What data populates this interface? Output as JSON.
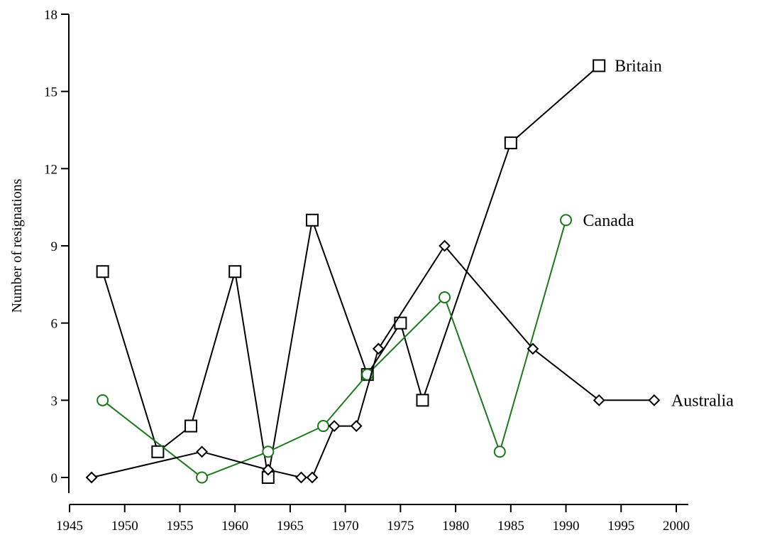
{
  "chart_data": {
    "type": "line",
    "title": "",
    "xlabel": "",
    "ylabel": "Number of resignations",
    "xlim": [
      1945,
      2000
    ],
    "ylim": [
      0,
      18
    ],
    "x_ticks": [
      1945,
      1950,
      1955,
      1960,
      1965,
      1970,
      1975,
      1980,
      1985,
      1990,
      1995,
      2000
    ],
    "y_ticks": [
      0,
      3,
      6,
      9,
      12,
      15,
      18
    ],
    "grid": false,
    "legend": "direct labels at series ends",
    "series": [
      {
        "name": "Britain",
        "color": "#000000",
        "marker": "square",
        "x": [
          1948,
          1953,
          1956,
          1960,
          1963,
          1967,
          1972,
          1975,
          1977,
          1985,
          1993
        ],
        "y": [
          8,
          1,
          2,
          8,
          0,
          10,
          4,
          6,
          3,
          13,
          16
        ]
      },
      {
        "name": "Canada",
        "color": "#1a7a1a",
        "marker": "circle",
        "x": [
          1948,
          1957,
          1963,
          1968,
          1972,
          1979,
          1984,
          1990
        ],
        "y": [
          3,
          0,
          1,
          2,
          4,
          7,
          1,
          10
        ]
      },
      {
        "name": "Australia",
        "color": "#000000",
        "marker": "diamond",
        "x": [
          1947,
          1957,
          1963,
          1966,
          1967,
          1969,
          1971,
          1973,
          1979,
          1987,
          1993,
          1998
        ],
        "y": [
          0,
          1,
          0.3,
          0,
          0,
          2,
          2,
          5,
          9,
          5,
          3,
          3
        ]
      }
    ]
  }
}
